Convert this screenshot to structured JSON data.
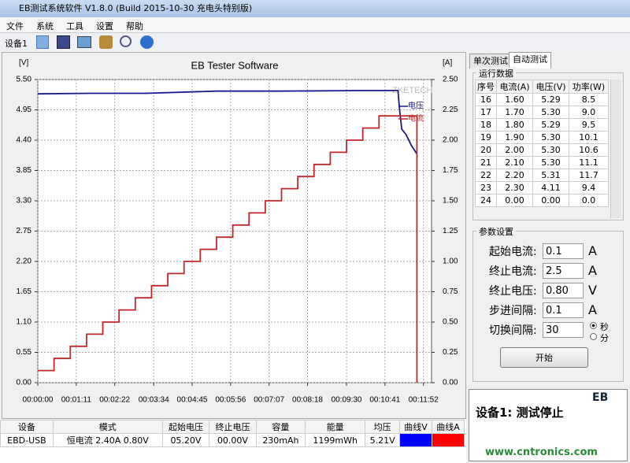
{
  "window": {
    "title": "EB测试系统软件 V1.8.0 (Build 2015-10-30 充电头特别版)"
  },
  "menu": [
    "文件",
    "系统",
    "工具",
    "设置",
    "帮助"
  ],
  "toolbar": {
    "device": "设备1"
  },
  "chart_data": {
    "type": "line",
    "title": "EB Tester Software",
    "y_label": "[V]",
    "y2_label": "[A]",
    "watermark": "ZKETECH",
    "xlim": [
      0,
      727
    ],
    "xticks": [
      {
        "value": 0,
        "label": "00:00:00"
      },
      {
        "value": 71,
        "label": "00:01:11"
      },
      {
        "value": 142,
        "label": "00:02:22"
      },
      {
        "value": 214,
        "label": "00:03:34"
      },
      {
        "value": 285,
        "label": "00:04:45"
      },
      {
        "value": 356,
        "label": "00:05:56"
      },
      {
        "value": 427,
        "label": "00:07:07"
      },
      {
        "value": 498,
        "label": "00:08:18"
      },
      {
        "value": 570,
        "label": "00:09:30"
      },
      {
        "value": 641,
        "label": "00:10:41"
      },
      {
        "value": 712,
        "label": "00:11:52"
      }
    ],
    "ylim": [
      0,
      5.5
    ],
    "yticks": [
      {
        "value": 0,
        "label": "0.00"
      },
      {
        "value": 0.55,
        "label": "0.55"
      },
      {
        "value": 1.1,
        "label": "1.10"
      },
      {
        "value": 1.65,
        "label": "1.65"
      },
      {
        "value": 2.2,
        "label": "2.20"
      },
      {
        "value": 2.75,
        "label": "2.75"
      },
      {
        "value": 3.3,
        "label": "3.30"
      },
      {
        "value": 3.85,
        "label": "3.85"
      },
      {
        "value": 4.4,
        "label": "4.40"
      },
      {
        "value": 4.95,
        "label": "4.95"
      },
      {
        "value": 5.5,
        "label": "5.50"
      }
    ],
    "y2lim": [
      0,
      2.5
    ],
    "y2ticks": [
      {
        "value": 0,
        "label": "0.00"
      },
      0.25,
      {
        "value": 0.5,
        "label": "0.50"
      },
      0.75,
      {
        "value": 1,
        "label": "1.00"
      },
      1.25,
      {
        "value": 1.5,
        "label": "1.50"
      },
      1.75,
      {
        "value": 2,
        "label": "2.00"
      },
      2.25,
      {
        "value": 2.5,
        "label": "2.50"
      }
    ],
    "grid": true,
    "series": [
      {
        "name": "电压",
        "color": "#1a1a8c",
        "x": [
          0,
          100,
          200,
          330,
          450,
          600,
          665,
          668,
          672,
          680,
          690,
          700
        ],
        "values": [
          5.24,
          5.25,
          5.25,
          5.29,
          5.29,
          5.3,
          5.3,
          4.95,
          4.6,
          4.5,
          4.3,
          4.15
        ]
      },
      {
        "name": "电流",
        "color": "#c0282d",
        "axis": "y2",
        "step": "post",
        "x": [
          0,
          30,
          60,
          90,
          120,
          150,
          180,
          210,
          240,
          270,
          300,
          330,
          360,
          390,
          420,
          450,
          480,
          510,
          540,
          570,
          600,
          630,
          700
        ],
        "values": [
          0.1,
          0.2,
          0.3,
          0.4,
          0.5,
          0.6,
          0.7,
          0.8,
          0.9,
          1.0,
          1.1,
          1.2,
          1.3,
          1.4,
          1.5,
          1.6,
          1.7,
          1.8,
          1.9,
          2.0,
          2.1,
          2.2,
          0
        ]
      }
    ]
  },
  "tabs": [
    "单次测试",
    "自动测试"
  ],
  "run_data": {
    "title": "运行数据",
    "columns": [
      "序号",
      "电流(A)",
      "电压(V)",
      "功率(W)"
    ],
    "rows": [
      [
        "16",
        "1.60",
        "5.29",
        "8.5"
      ],
      [
        "17",
        "1.70",
        "5.30",
        "9.0"
      ],
      [
        "18",
        "1.80",
        "5.29",
        "9.5"
      ],
      [
        "19",
        "1.90",
        "5.30",
        "10.1"
      ],
      [
        "20",
        "2.00",
        "5.30",
        "10.6"
      ],
      [
        "21",
        "2.10",
        "5.30",
        "11.1"
      ],
      [
        "22",
        "2.20",
        "5.31",
        "11.7"
      ],
      [
        "23",
        "2.30",
        "4.11",
        "9.4"
      ],
      [
        "24",
        "0.00",
        "0.00",
        "0.0"
      ]
    ]
  },
  "params": {
    "title": "参数设置",
    "fields": [
      {
        "label": "起始电流:",
        "value": "0.1",
        "unit": "A"
      },
      {
        "label": "终止电流:",
        "value": "2.5",
        "unit": "A"
      },
      {
        "label": "终止电压:",
        "value": "0.80",
        "unit": "V"
      },
      {
        "label": "步进间隔:",
        "value": "0.1",
        "unit": "A"
      }
    ],
    "switch": {
      "label": "切换间隔:",
      "value": "30",
      "options": [
        "秒",
        "分"
      ]
    },
    "button": "开始"
  },
  "status": {
    "brand": "EB",
    "text": "设备1: 测试停止"
  },
  "bottom_table": {
    "columns": [
      "设备",
      "模式",
      "起始电压",
      "终止电压",
      "容量",
      "能量",
      "均压",
      "曲线V",
      "曲线A"
    ],
    "row": [
      "EBD-USB",
      "恒电流  2.40A  0.80V",
      "05.20V",
      "00.00V",
      "230mAh",
      "1199mWh",
      "5.21V"
    ],
    "curve_colors": [
      "#0000ff",
      "#ff0000"
    ]
  },
  "watermark": "www.cntronics.com"
}
